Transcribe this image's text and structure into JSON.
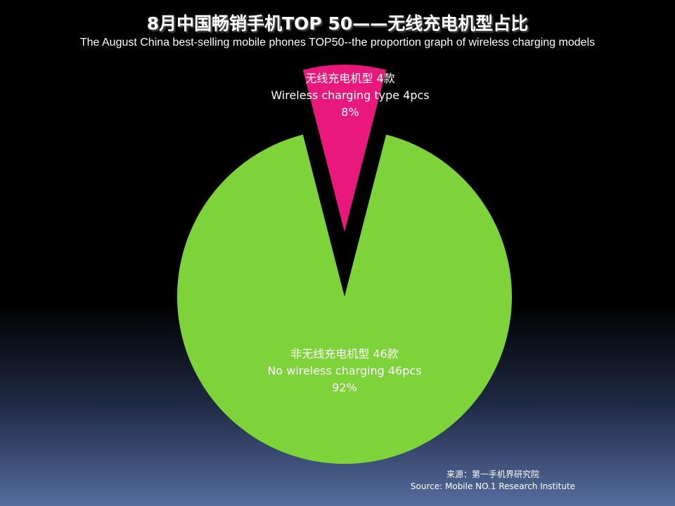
{
  "title": "8月中国畅销手机TOP 50——无线充电机型占比",
  "subtitle": "The August China best-selling mobile phones TOP50--the proportion graph of wireless charging models",
  "chart_data": {
    "type": "pie",
    "title": "8月中国畅销手机TOP 50——无线充电机型占比",
    "subtitle": "The August China best-selling mobile phones TOP50--the proportion graph of wireless charging models",
    "slices": [
      {
        "label_zh": "无线充电机型 4款",
        "label_en": "Wireless charging type 4pcs",
        "value": 4,
        "percent": "8%",
        "color": "#e8187c",
        "exploded": true
      },
      {
        "label_zh": "非无线充电机型 46款",
        "label_en": "No wireless charging 46pcs",
        "value": 46,
        "percent": "92%",
        "color": "#7ed33a",
        "exploded": false
      }
    ],
    "legend": "none"
  },
  "source": {
    "zh": "来源：第一手机界研究院",
    "en": "Source: Mobile NO.1 Research Institute"
  },
  "colors": {
    "background_top": "#000000",
    "background_bottom": "#566d9e"
  }
}
